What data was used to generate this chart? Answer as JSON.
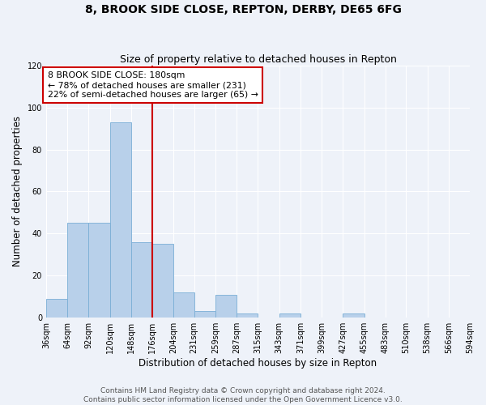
{
  "title": "8, BROOK SIDE CLOSE, REPTON, DERBY, DE65 6FG",
  "subtitle": "Size of property relative to detached houses in Repton",
  "xlabel": "Distribution of detached houses by size in Repton",
  "ylabel": "Number of detached properties",
  "bin_edges": [
    36,
    64,
    92,
    120,
    148,
    176,
    204,
    231,
    259,
    287,
    315,
    343,
    371,
    399,
    427,
    455,
    483,
    510,
    538,
    566,
    594
  ],
  "counts": [
    9,
    45,
    45,
    93,
    36,
    35,
    12,
    3,
    11,
    2,
    0,
    2,
    0,
    0,
    2,
    0,
    0,
    0,
    0,
    0
  ],
  "bar_color": "#b8d0ea",
  "bar_edge_color": "#7aaed6",
  "vline_x": 176,
  "vline_color": "#cc0000",
  "annotation_text": "8 BROOK SIDE CLOSE: 180sqm\n← 78% of detached houses are smaller (231)\n22% of semi-detached houses are larger (65) →",
  "annotation_box_color": "#ffffff",
  "annotation_box_edge_color": "#cc0000",
  "ylim": [
    0,
    120
  ],
  "tick_labels": [
    "36sqm",
    "64sqm",
    "92sqm",
    "120sqm",
    "148sqm",
    "176sqm",
    "204sqm",
    "231sqm",
    "259sqm",
    "287sqm",
    "315sqm",
    "343sqm",
    "371sqm",
    "399sqm",
    "427sqm",
    "455sqm",
    "483sqm",
    "510sqm",
    "538sqm",
    "566sqm",
    "594sqm"
  ],
  "footer_line1": "Contains HM Land Registry data © Crown copyright and database right 2024.",
  "footer_line2": "Contains public sector information licensed under the Open Government Licence v3.0.",
  "bg_color": "#eef2f9",
  "grid_color": "#ffffff",
  "title_fontsize": 10,
  "subtitle_fontsize": 9,
  "axis_label_fontsize": 8.5,
  "tick_fontsize": 7,
  "footer_fontsize": 6.5,
  "annotation_fontsize": 7.8
}
